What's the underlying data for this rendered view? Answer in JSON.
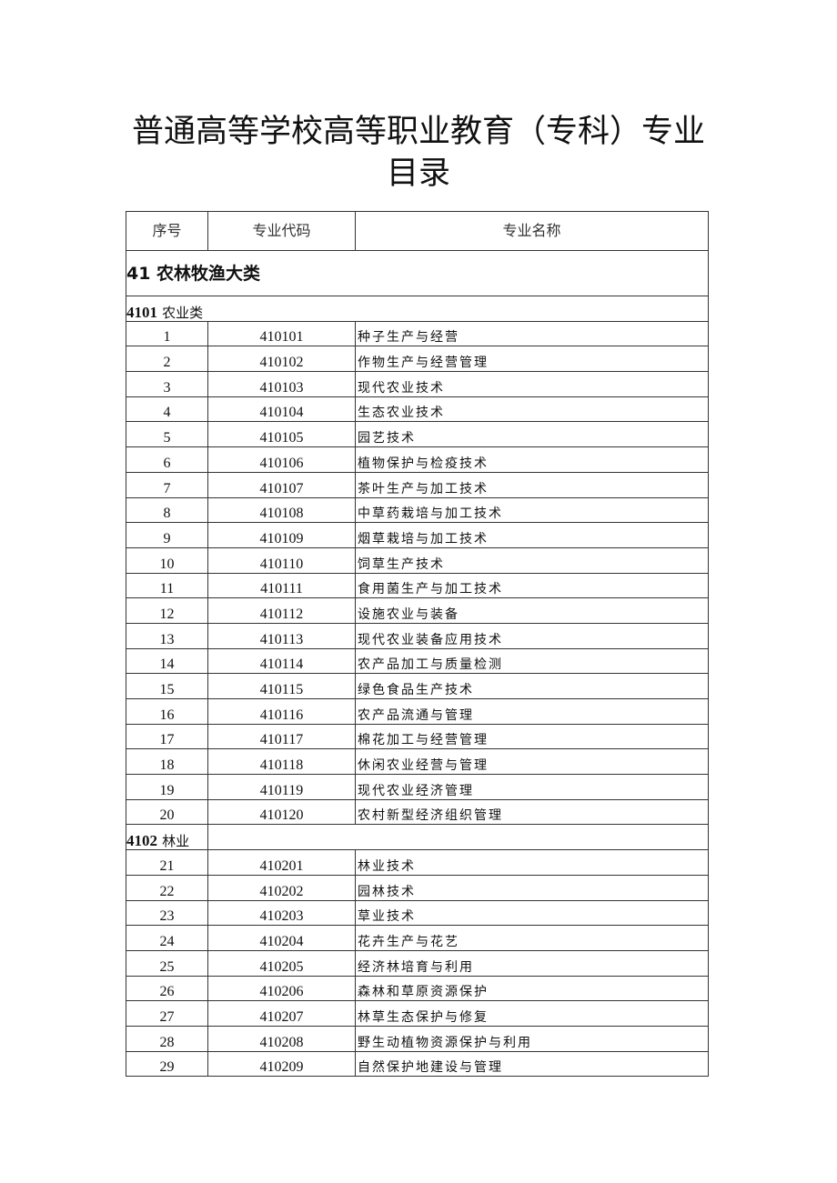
{
  "document": {
    "title_line1": "普通高等学校高等职业教育（专科）专业",
    "title_line2": "目录"
  },
  "table": {
    "headers": [
      "序号",
      "专业代码",
      "专业名称"
    ],
    "major_category": "41 农林牧渔大类",
    "groups": [
      {
        "code": "4101",
        "name": "农业类",
        "rows": [
          [
            "1",
            "410101",
            "种子生产与经营"
          ],
          [
            "2",
            "410102",
            "作物生产与经营管理"
          ],
          [
            "3",
            "410103",
            "现代农业技术"
          ],
          [
            "4",
            "410104",
            "生态农业技术"
          ],
          [
            "5",
            "410105",
            "园艺技术"
          ],
          [
            "6",
            "410106",
            "植物保护与检疫技术"
          ],
          [
            "7",
            "410107",
            "茶叶生产与加工技术"
          ],
          [
            "8",
            "410108",
            "中草药栽培与加工技术"
          ],
          [
            "9",
            "410109",
            "烟草栽培与加工技术"
          ],
          [
            "10",
            "410110",
            "饲草生产技术"
          ],
          [
            "11",
            "410111",
            "食用菌生产与加工技术"
          ],
          [
            "12",
            "410112",
            "设施农业与装备"
          ],
          [
            "13",
            "410113",
            "现代农业装备应用技术"
          ],
          [
            "14",
            "410114",
            "农产品加工与质量检测"
          ],
          [
            "15",
            "410115",
            "绿色食品生产技术"
          ],
          [
            "16",
            "410116",
            "农产品流通与管理"
          ],
          [
            "17",
            "410117",
            "棉花加工与经营管理"
          ],
          [
            "18",
            "410118",
            "休闲农业经营与管理"
          ],
          [
            "19",
            "410119",
            "现代农业经济管理"
          ],
          [
            "20",
            "410120",
            "农村新型经济组织管理"
          ]
        ]
      },
      {
        "code": "4102",
        "name": "林业",
        "rows": [
          [
            "21",
            "410201",
            "林业技术"
          ],
          [
            "22",
            "410202",
            "园林技术"
          ],
          [
            "23",
            "410203",
            "草业技术"
          ],
          [
            "24",
            "410204",
            "花卉生产与花艺"
          ],
          [
            "25",
            "410205",
            "经济林培育与利用"
          ],
          [
            "26",
            "410206",
            "森林和草原资源保护"
          ],
          [
            "27",
            "410207",
            "林草生态保护与修复"
          ],
          [
            "28",
            "410208",
            "野生动植物资源保护与利用"
          ],
          [
            "29",
            "410209",
            "自然保护地建设与管理"
          ]
        ]
      }
    ]
  }
}
